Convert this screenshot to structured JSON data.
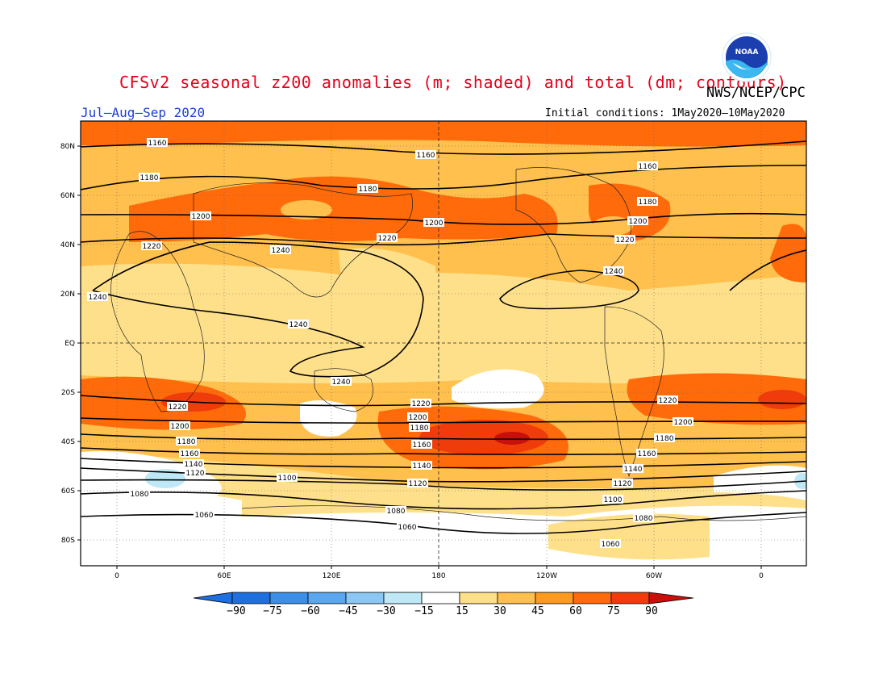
{
  "title": "CFSv2 seasonal z200 anomalies (m; shaded) and total (dm; contours)",
  "agency": "NWS/NCEP/CPC",
  "season": "Jul–Aug–Sep 2020",
  "initial_conditions": "Initial conditions: 1May2020–10May2020",
  "logo_text": "NOAA",
  "lat_labels": [
    "80N",
    "60N",
    "40N",
    "20N",
    "EQ",
    "20S",
    "40S",
    "60S",
    "80S"
  ],
  "lon_labels": [
    "0",
    "60E",
    "120E",
    "180",
    "120W",
    "60W",
    "0"
  ],
  "colorbar": {
    "labels": [
      "−90",
      "−75",
      "−60",
      "−45",
      "−30",
      "−15",
      "15",
      "30",
      "45",
      "60",
      "75",
      "90"
    ],
    "colors": [
      "#1e6fe0",
      "#3c8ee8",
      "#5aa6ef",
      "#8cc6f4",
      "#bfe8f7",
      "#ffffff",
      "#ffe08a",
      "#ffc04d",
      "#ff9a1f",
      "#ff6a0a",
      "#f03c0a",
      "#c80f0a"
    ]
  },
  "contour_labels": {
    "c1160a": "1160",
    "c1160b": "1160",
    "c1160c": "1160",
    "c1180a": "1180",
    "c1180b": "1180",
    "c1180c": "1180",
    "c1200a": "1200",
    "c1200b": "1200",
    "c1200c": "1200",
    "c1220a": "1220",
    "c1220b": "1220",
    "c1220c": "1220",
    "c1240a": "1240",
    "c1240b": "1240",
    "c1240c": "1240",
    "c1240d": "1240",
    "c1240e": "1240",
    "s1220a": "1220",
    "s1220b": "1220",
    "s1220c": "1220",
    "s1200a": "1200",
    "s1200b": "1200",
    "s1200c": "1200",
    "s1180a": "1180",
    "s1180b": "1180",
    "s1180c": "1180",
    "s1160a": "1160",
    "s1160b": "1160",
    "s1160c": "1160",
    "s1140a": "1140",
    "s1140b": "1140",
    "s1140c": "1140",
    "s1120a": "1120",
    "s1120b": "1120",
    "s1120c": "1120",
    "s1100a": "1100",
    "s1100b": "1100",
    "s1080a": "1080",
    "s1080b": "1080",
    "s1080c": "1080",
    "s1060a": "1060",
    "s1060b": "1060",
    "s1060c": "1060"
  }
}
